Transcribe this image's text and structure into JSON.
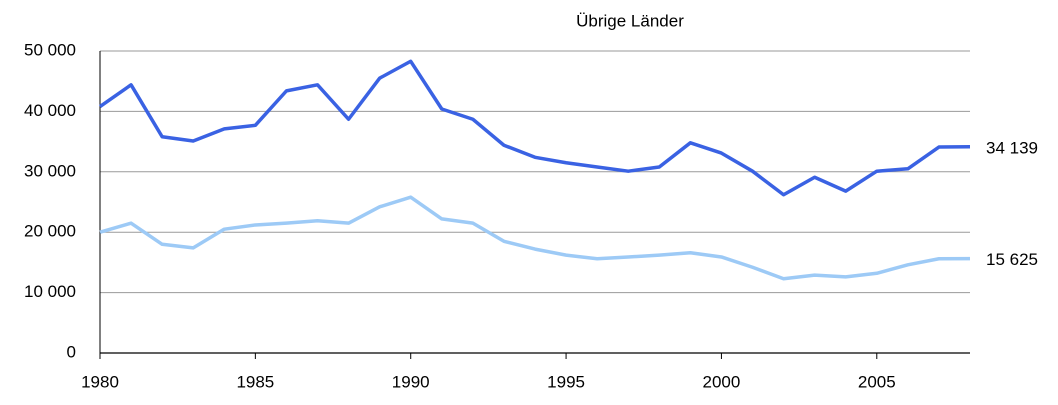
{
  "chart_data": {
    "type": "line",
    "title": "Übrige Länder",
    "x": [
      1980,
      1981,
      1982,
      1983,
      1984,
      1985,
      1986,
      1987,
      1988,
      1989,
      1990,
      1991,
      1992,
      1993,
      1994,
      1995,
      1996,
      1997,
      1998,
      1999,
      2000,
      2001,
      2002,
      2003,
      2004,
      2005,
      2006,
      2007,
      2008
    ],
    "series": [
      {
        "color": "#3a62e3",
        "values": [
          40800,
          44400,
          35800,
          35100,
          37100,
          37700,
          43400,
          44400,
          38700,
          45500,
          48300,
          40400,
          38700,
          34400,
          32400,
          31500,
          30800,
          30100,
          30800,
          34800,
          33100,
          30100,
          26200,
          29100,
          26800,
          30100,
          30500,
          34100,
          34139
        ],
        "value_labels": [
          null,
          null,
          null,
          null,
          null,
          null,
          null,
          null,
          null,
          null,
          null,
          null,
          null,
          null,
          null,
          null,
          null,
          null,
          null,
          null,
          null,
          null,
          null,
          null,
          null,
          null,
          null,
          null,
          "34 139"
        ]
      },
      {
        "color": "#9dcaf6",
        "values": [
          20000,
          21500,
          18000,
          17400,
          20500,
          21200,
          21500,
          21900,
          21500,
          24200,
          25800,
          22200,
          21500,
          18500,
          17200,
          16200,
          15600,
          15900,
          16200,
          16600,
          15900,
          14200,
          12300,
          12900,
          12600,
          13200,
          14600,
          15600,
          15625
        ],
        "value_labels": [
          null,
          null,
          null,
          null,
          null,
          null,
          null,
          null,
          null,
          null,
          null,
          null,
          null,
          null,
          null,
          null,
          null,
          null,
          null,
          null,
          null,
          null,
          null,
          null,
          null,
          null,
          null,
          null,
          "15 625"
        ]
      }
    ],
    "xlim": [
      1980,
      2008
    ],
    "xticks": [
      1980,
      1985,
      1990,
      1995,
      2000,
      2005
    ],
    "ylim": [
      0,
      50000
    ],
    "yticks": [
      0,
      {
        "value": 10000,
        "label": "10 000"
      },
      {
        "value": 20000,
        "label": "20 000"
      },
      {
        "value": 30000,
        "label": "30 000"
      },
      {
        "value": 40000,
        "label": "40 000"
      },
      {
        "value": 50000,
        "label": "50 000"
      }
    ],
    "grid": true
  }
}
